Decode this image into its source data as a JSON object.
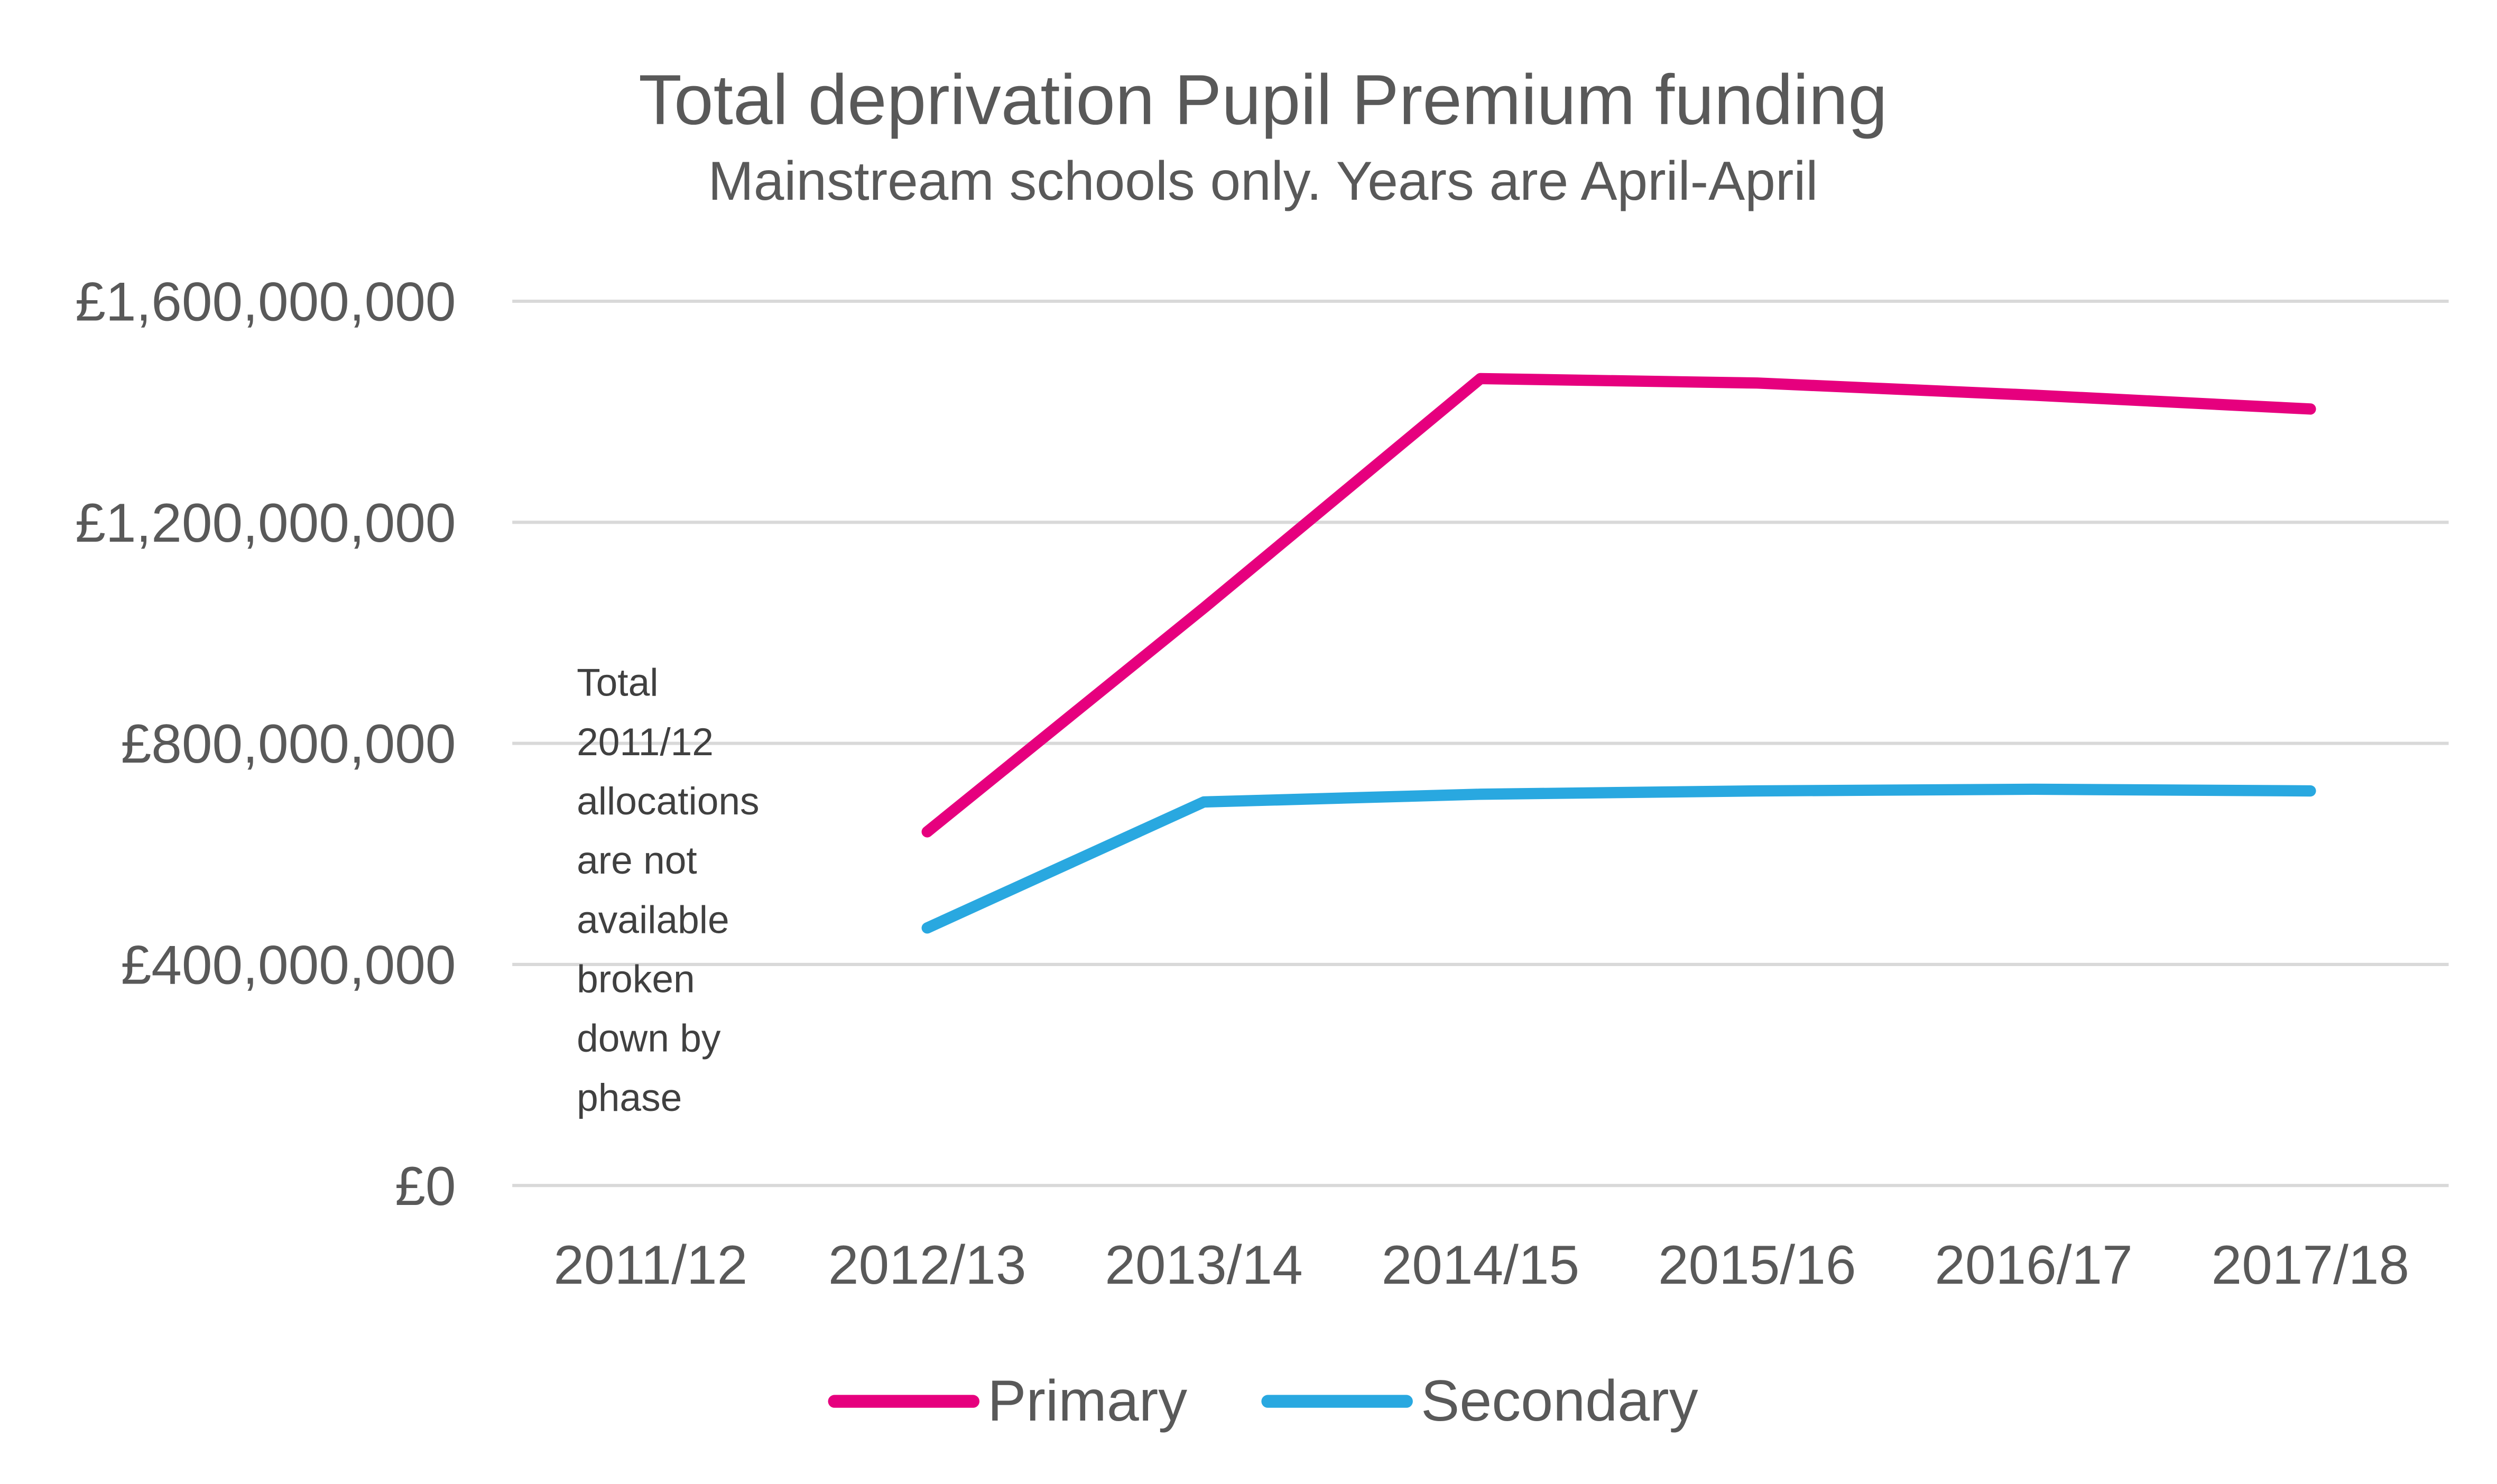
{
  "chart_data": {
    "type": "line",
    "title": "Total deprivation Pupil Premium funding",
    "subtitle": "Mainstream schools only. Years are April-April",
    "xlabel": "",
    "ylabel": "",
    "categories": [
      "2011/12",
      "2012/13",
      "2013/14",
      "2014/15",
      "2015/16",
      "2016/17",
      "2017/18"
    ],
    "ylim": [
      0,
      1600000000
    ],
    "yticks": [
      0,
      400000000,
      800000000,
      1200000000,
      1600000000
    ],
    "ytick_labels": [
      "£0",
      "£400,000,000",
      "£800,000,000",
      "£1,200,000,000",
      "£1,600,000,000"
    ],
    "grid": true,
    "legend_position": "bottom",
    "series": [
      {
        "name": "Primary",
        "color": "#E6007E",
        "values": [
          null,
          640000000,
          1045000000,
          1460000000,
          1452000000,
          1430000000,
          1405000000
        ]
      },
      {
        "name": "Secondary",
        "color": "#29A8E0",
        "values": [
          null,
          466000000,
          694000000,
          708000000,
          714000000,
          717000000,
          714000000
        ]
      }
    ],
    "annotation": [
      "Total",
      "2011/12",
      "allocations",
      "are not",
      "available",
      "broken",
      "down by",
      "phase"
    ]
  }
}
